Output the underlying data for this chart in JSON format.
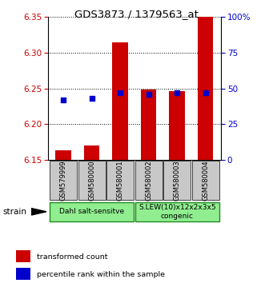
{
  "title": "GDS3873 / 1379563_at",
  "samples": [
    "GSM579999",
    "GSM580000",
    "GSM580001",
    "GSM580002",
    "GSM580003",
    "GSM580004"
  ],
  "transformed_count": [
    6.163,
    6.17,
    6.315,
    6.248,
    6.246,
    6.35
  ],
  "percentile_rank": [
    42,
    43,
    47,
    46,
    47,
    47
  ],
  "baseline": 6.15,
  "ylim_left": [
    6.15,
    6.35
  ],
  "ylim_right": [
    0,
    100
  ],
  "yticks_left": [
    6.15,
    6.2,
    6.25,
    6.3,
    6.35
  ],
  "yticks_right": [
    0,
    25,
    50,
    75,
    100
  ],
  "groups": [
    {
      "label": "Dahl salt-sensitve",
      "start": 0,
      "end": 3,
      "color": "#90EE90"
    },
    {
      "label": "S.LEW(10)x12x2x3x5\ncongenic",
      "start": 3,
      "end": 6,
      "color": "#90EE90"
    }
  ],
  "bar_color": "#CC0000",
  "dot_color": "#0000CC",
  "bar_width": 0.55,
  "dot_size": 22,
  "axis_label_color_left": "#CC0000",
  "axis_label_color_right": "#0000CC",
  "legend_items": [
    {
      "color": "#CC0000",
      "label": "transformed count"
    },
    {
      "color": "#0000CC",
      "label": "percentile rank within the sample"
    }
  ],
  "strain_label": "strain",
  "tick_box_color": "#C8C8C8",
  "group_border_color": "#228B22"
}
